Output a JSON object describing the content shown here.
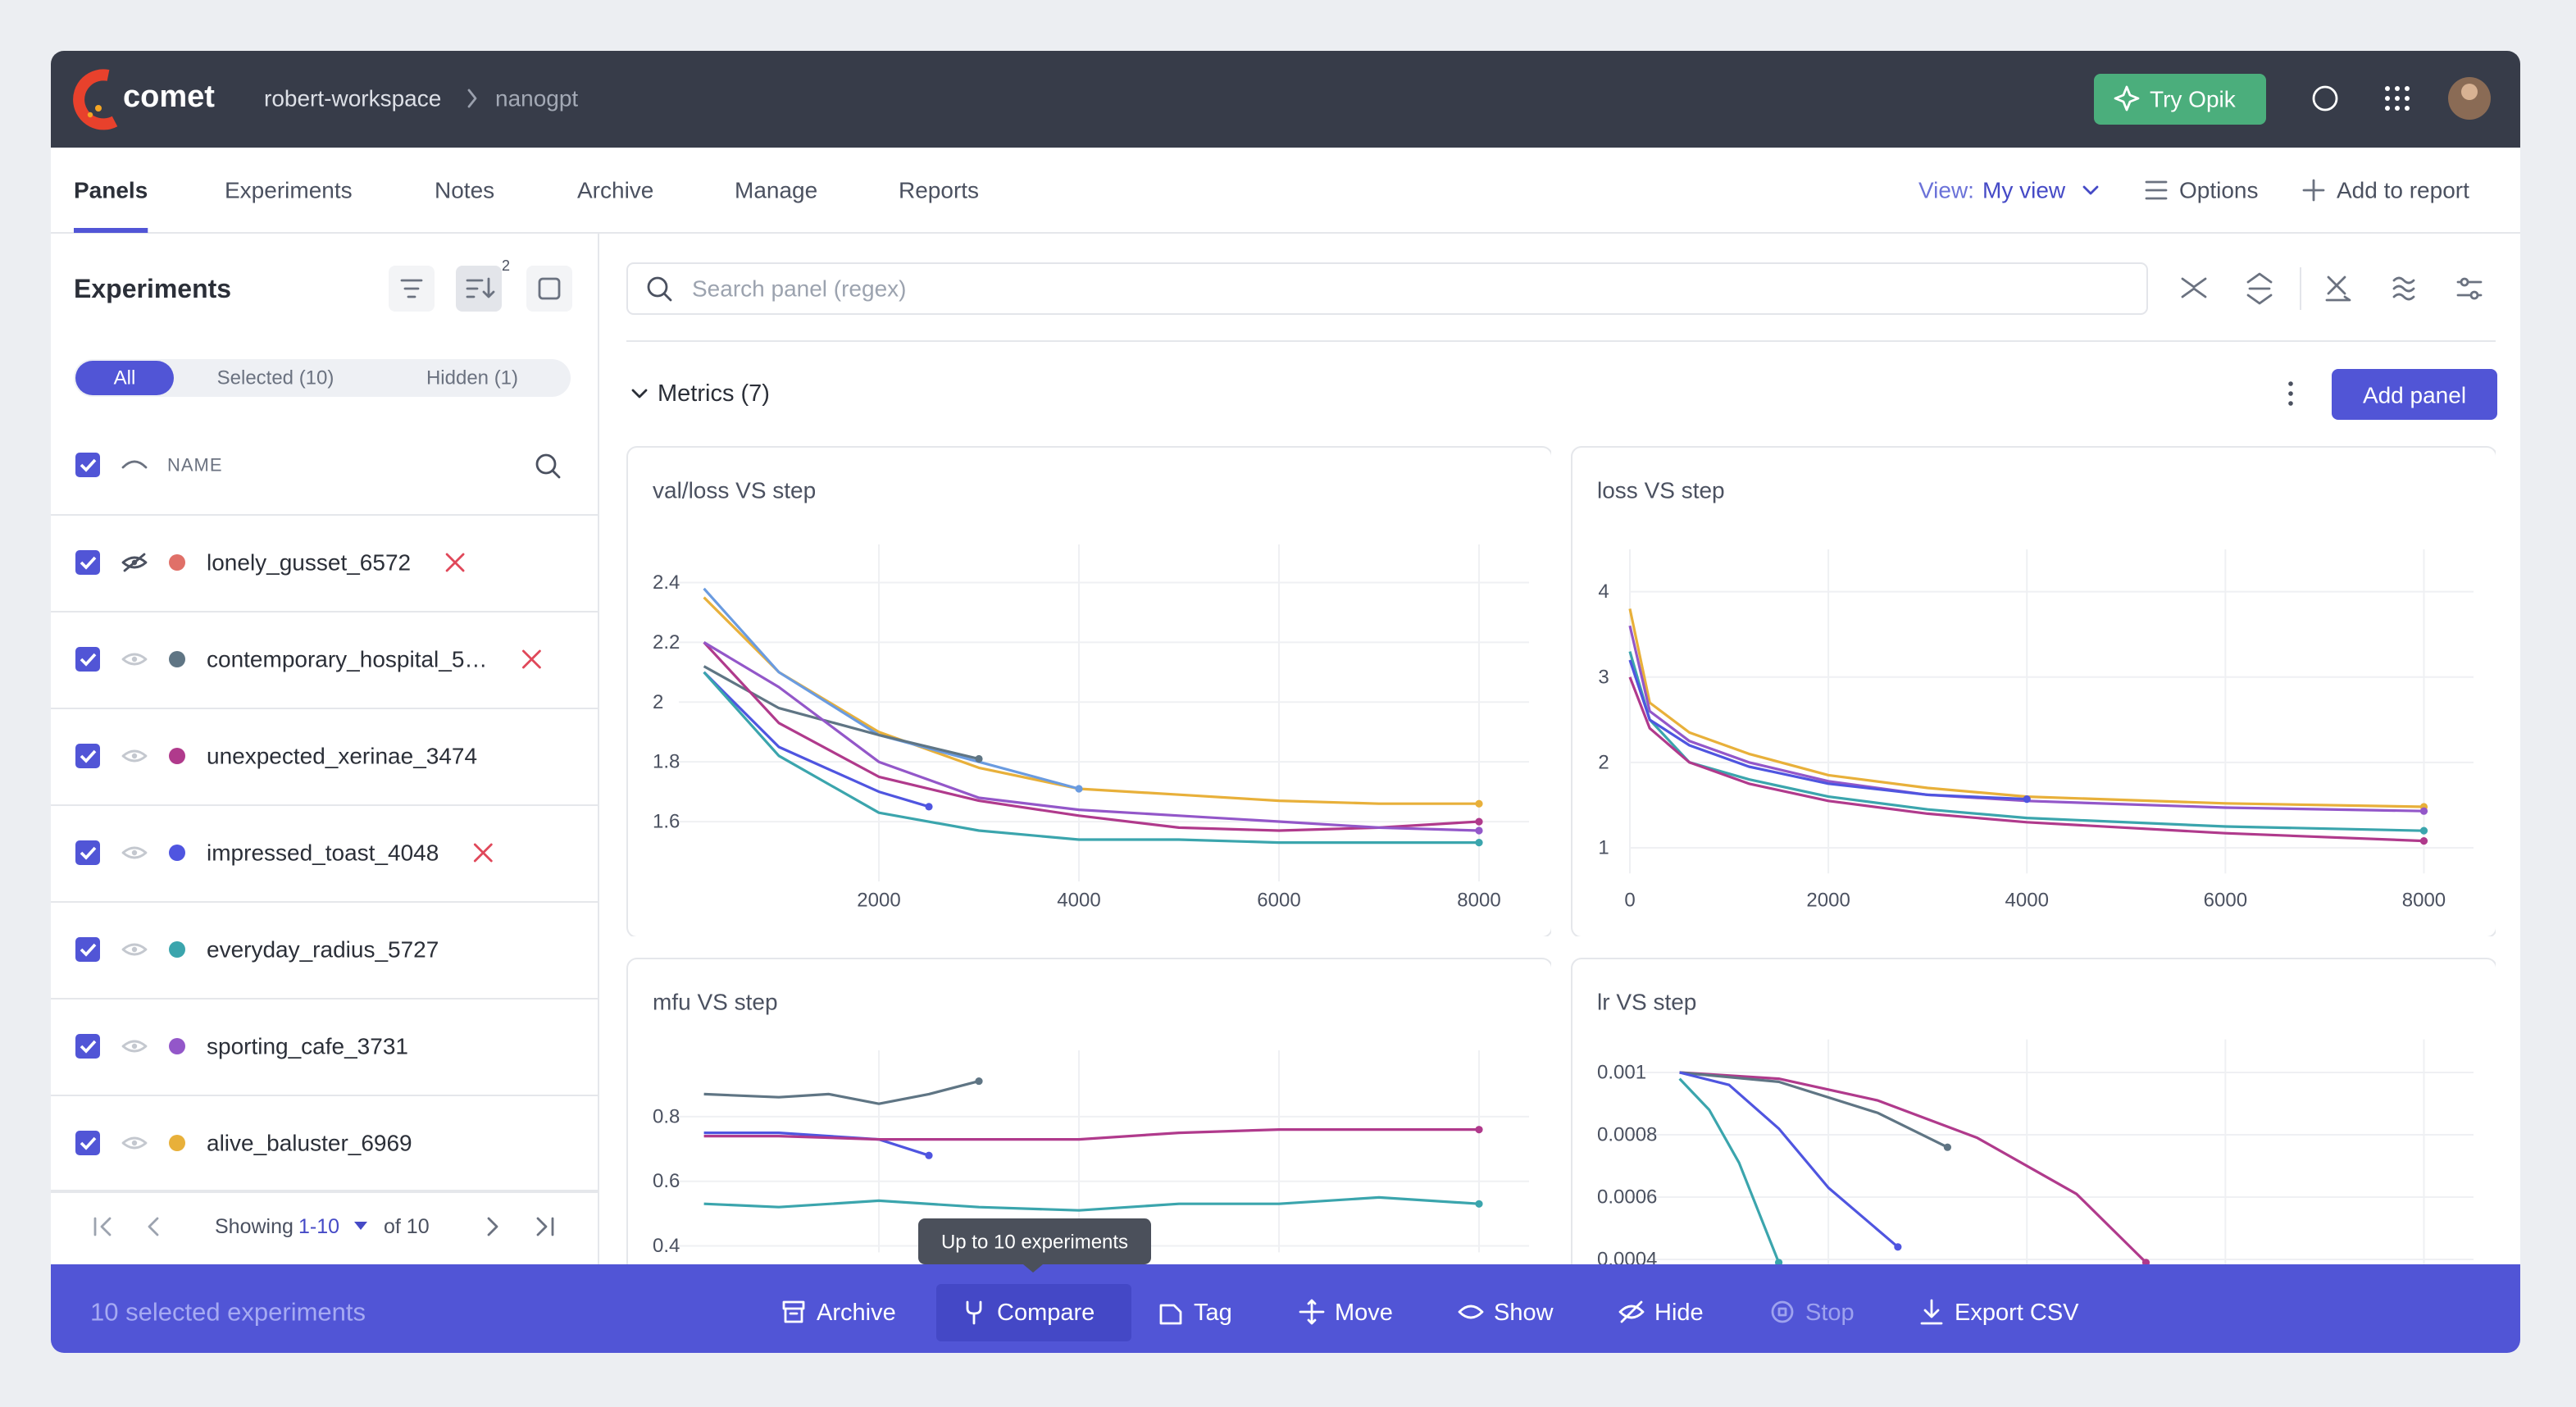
{
  "header": {
    "logo": "comet",
    "breadcrumb": [
      "robert-workspace",
      "nanogpt"
    ],
    "try_opik": "Try Opik"
  },
  "tabs": {
    "items": [
      "Panels",
      "Experiments",
      "Notes",
      "Archive",
      "Manage",
      "Reports"
    ],
    "active": 0,
    "view_label": "View:",
    "view_value": "My view",
    "options": "Options",
    "add_to_report": "Add to report"
  },
  "sidebar": {
    "title": "Experiments",
    "sort_count": 2,
    "filters": [
      "All",
      "Selected (10)",
      "Hidden (1)"
    ],
    "active_filter": 0,
    "column": "NAME",
    "experiments": [
      {
        "name": "lonely_gusset_6572",
        "color": "#e07068",
        "hidden": true,
        "removed": true
      },
      {
        "name": "contemporary_hospital_5…",
        "color": "#5f7584",
        "hidden": false,
        "removed": true
      },
      {
        "name": "unexpected_xerinae_3474",
        "color": "#b03a8c",
        "hidden": false,
        "removed": false
      },
      {
        "name": "impressed_toast_4048",
        "color": "#4f55e0",
        "hidden": false,
        "removed": true
      },
      {
        "name": "everyday_radius_5727",
        "color": "#3ba5ad",
        "hidden": false,
        "removed": false
      },
      {
        "name": "sporting_cafe_3731",
        "color": "#9357c9",
        "hidden": false,
        "removed": false
      },
      {
        "name": "alive_baluster_6969",
        "color": "#e8b03a",
        "hidden": false,
        "removed": false
      }
    ],
    "pagination": {
      "showing": "Showing",
      "range": "1-10",
      "total": "of 10"
    }
  },
  "main": {
    "search_placeholder": "Search panel (regex)",
    "section": "Metrics (7)",
    "add_panel": "Add panel"
  },
  "chart_data": [
    {
      "type": "line",
      "title": "val/loss VS step",
      "xlim": [
        0,
        8500
      ],
      "ylim": [
        1.4,
        2.5
      ],
      "xticks": [
        2000,
        4000,
        6000,
        8000
      ],
      "yticks": [
        1.6,
        1.8,
        2,
        2.2,
        2.4
      ],
      "grid": true,
      "series": [
        {
          "color": "#e8b03a",
          "x": [
            250,
            1000,
            2000,
            3000,
            4000,
            5000,
            6000,
            7000,
            8000
          ],
          "values": [
            2.35,
            2.1,
            1.9,
            1.78,
            1.71,
            1.69,
            1.67,
            1.66,
            1.66
          ]
        },
        {
          "color": "#6a9be0",
          "x": [
            250,
            1000,
            2000,
            3000,
            4000
          ],
          "values": [
            2.38,
            2.1,
            1.89,
            1.8,
            1.71
          ]
        },
        {
          "color": "#5f7584",
          "x": [
            250,
            1000,
            2000,
            3000
          ],
          "values": [
            2.12,
            1.98,
            1.89,
            1.81
          ]
        },
        {
          "color": "#b03a8c",
          "x": [
            250,
            1000,
            2000,
            3000,
            4000,
            5000,
            6000,
            7000,
            8000
          ],
          "values": [
            2.2,
            1.93,
            1.75,
            1.67,
            1.62,
            1.58,
            1.57,
            1.58,
            1.6
          ]
        },
        {
          "color": "#9357c9",
          "x": [
            250,
            1000,
            2000,
            3000,
            4000,
            5000,
            6000,
            7000,
            8000
          ],
          "values": [
            2.2,
            2.05,
            1.8,
            1.68,
            1.64,
            1.62,
            1.6,
            1.58,
            1.57
          ]
        },
        {
          "color": "#4f55e0",
          "x": [
            250,
            1000,
            2000,
            2500
          ],
          "values": [
            2.1,
            1.85,
            1.7,
            1.65
          ]
        },
        {
          "color": "#3ba5ad",
          "x": [
            250,
            1000,
            2000,
            3000,
            4000,
            5000,
            6000,
            7000,
            8000
          ],
          "values": [
            2.1,
            1.82,
            1.63,
            1.57,
            1.54,
            1.54,
            1.53,
            1.53,
            1.53
          ]
        }
      ]
    },
    {
      "type": "line",
      "title": "loss VS step",
      "xlim": [
        0,
        8500
      ],
      "ylim": [
        0.7,
        4.4
      ],
      "xticks": [
        0,
        2000,
        4000,
        6000,
        8000
      ],
      "yticks": [
        1,
        2,
        3,
        4
      ],
      "grid": true,
      "series": [
        {
          "color": "#e8b03a",
          "x": [
            0,
            200,
            600,
            1200,
            2000,
            3000,
            4000,
            6000,
            8000
          ],
          "values": [
            3.8,
            2.7,
            2.35,
            2.1,
            1.85,
            1.7,
            1.6,
            1.52,
            1.48
          ]
        },
        {
          "color": "#9357c9",
          "x": [
            0,
            200,
            600,
            1200,
            2000,
            3000,
            4000,
            6000,
            8000
          ],
          "values": [
            3.6,
            2.6,
            2.25,
            2.0,
            1.78,
            1.62,
            1.55,
            1.47,
            1.43
          ]
        },
        {
          "color": "#3ba5ad",
          "x": [
            0,
            200,
            600,
            1200,
            2000,
            3000,
            4000,
            6000,
            8000
          ],
          "values": [
            3.3,
            2.5,
            2.0,
            1.8,
            1.6,
            1.45,
            1.35,
            1.25,
            1.2
          ]
        },
        {
          "color": "#b03a8c",
          "x": [
            0,
            200,
            600,
            1200,
            2000,
            3000,
            4000,
            6000,
            8000
          ],
          "values": [
            3.0,
            2.4,
            2.0,
            1.75,
            1.55,
            1.4,
            1.3,
            1.17,
            1.08
          ]
        },
        {
          "color": "#4f55e0",
          "x": [
            0,
            200,
            600,
            1200,
            2000,
            3000,
            4000
          ],
          "values": [
            3.2,
            2.5,
            2.2,
            1.95,
            1.75,
            1.62,
            1.57
          ]
        }
      ]
    },
    {
      "type": "line",
      "title": "mfu VS step",
      "xlim": [
        0,
        8500
      ],
      "ylim": [
        0.38,
        0.98
      ],
      "xticks": [
        2000,
        4000,
        6000,
        8000
      ],
      "yticks": [
        0.4,
        0.6,
        0.8
      ],
      "grid": true,
      "series": [
        {
          "color": "#5f7584",
          "x": [
            250,
            1000,
            1500,
            2000,
            2500,
            3000
          ],
          "values": [
            0.87,
            0.86,
            0.87,
            0.84,
            0.87,
            0.91
          ]
        },
        {
          "color": "#4f55e0",
          "x": [
            250,
            1000,
            1500,
            2000,
            2500
          ],
          "values": [
            0.75,
            0.75,
            0.74,
            0.73,
            0.68
          ]
        },
        {
          "color": "#b03a8c",
          "x": [
            250,
            1000,
            2000,
            3000,
            4000,
            5000,
            6000,
            7000,
            8000
          ],
          "values": [
            0.74,
            0.74,
            0.73,
            0.73,
            0.73,
            0.75,
            0.76,
            0.76,
            0.76
          ]
        },
        {
          "color": "#3ba5ad",
          "x": [
            250,
            1000,
            2000,
            3000,
            4000,
            5000,
            6000,
            7000,
            8000
          ],
          "values": [
            0.53,
            0.52,
            0.54,
            0.52,
            0.51,
            0.53,
            0.53,
            0.55,
            0.53
          ]
        }
      ]
    },
    {
      "type": "line",
      "title": "lr VS step",
      "xlim": [
        0,
        8500
      ],
      "ylim": [
        0.00035,
        0.00108
      ],
      "xticks": [
        2000,
        4000,
        6000,
        8000
      ],
      "yticks": [
        0.0004,
        0.0006,
        0.0008,
        0.001
      ],
      "grid": true,
      "series": [
        {
          "color": "#b03a8c",
          "x": [
            500,
            1500,
            2500,
            3500,
            4500,
            5200
          ],
          "values": [
            0.001,
            0.00098,
            0.00091,
            0.00079,
            0.00061,
            0.00039
          ]
        },
        {
          "color": "#5f7584",
          "x": [
            500,
            1500,
            2500,
            3200
          ],
          "values": [
            0.001,
            0.00097,
            0.00087,
            0.00076
          ]
        },
        {
          "color": "#4f55e0",
          "x": [
            500,
            1000,
            1500,
            2000,
            2700
          ],
          "values": [
            0.001,
            0.00096,
            0.00082,
            0.00063,
            0.00044
          ]
        },
        {
          "color": "#3ba5ad",
          "x": [
            500,
            800,
            1100,
            1500
          ],
          "values": [
            0.00098,
            0.00088,
            0.00071,
            0.00039
          ]
        }
      ]
    }
  ],
  "bottom_bar": {
    "selected": "10 selected experiments",
    "actions": [
      "Archive",
      "Compare",
      "Tag",
      "Move",
      "Show",
      "Hide",
      "Stop",
      "Export CSV"
    ],
    "active": 1,
    "disabled": [
      6
    ],
    "tooltip": "Up to 10 experiments"
  }
}
